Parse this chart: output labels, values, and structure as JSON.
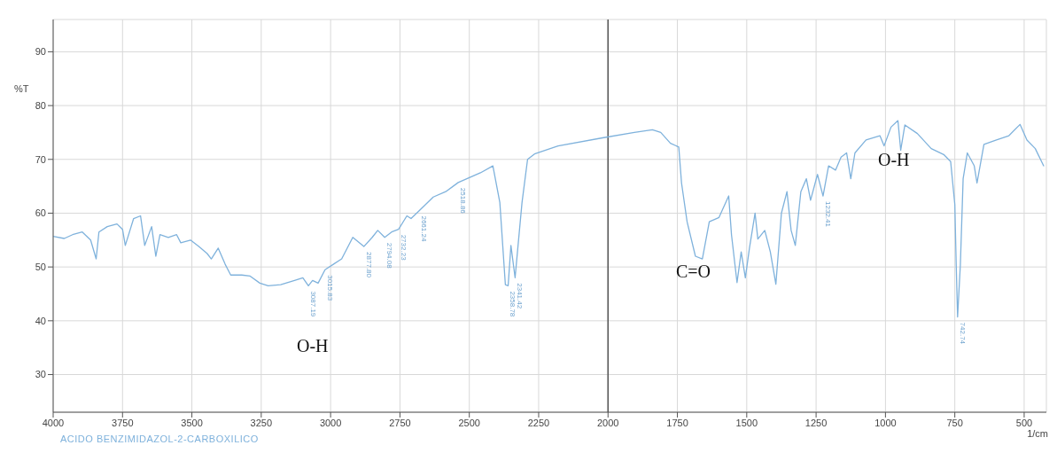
{
  "chart_data": {
    "type": "line",
    "xlabel": "1/cm",
    "ylabel": "%T",
    "xlim": [
      4000,
      420
    ],
    "xticks": [
      4000,
      3750,
      3500,
      3250,
      3000,
      2750,
      2500,
      2250,
      2000,
      1750,
      1500,
      1250,
      1000,
      750,
      500
    ],
    "ylim": [
      23,
      96
    ],
    "yticks": [
      30,
      40,
      50,
      60,
      70,
      80,
      90
    ],
    "grid": true,
    "legend": false,
    "marker": "none",
    "line_style": "solid",
    "ref_lines": [
      {
        "axis": "x",
        "value": 2000,
        "color": "#555555"
      }
    ],
    "series": [
      {
        "color": "#7fb2dc",
        "x": [
          4000,
          3960,
          3930,
          3895,
          3865,
          3845,
          3835,
          3805,
          3770,
          3750,
          3740,
          3710,
          3685,
          3670,
          3645,
          3630,
          3615,
          3585,
          3555,
          3540,
          3505,
          3475,
          3445,
          3430,
          3405,
          3380,
          3360,
          3320,
          3290,
          3255,
          3225,
          3180,
          3130,
          3100,
          3080,
          3065,
          3045,
          3020,
          2990,
          2960,
          2920,
          2880,
          2850,
          2830,
          2805,
          2780,
          2755,
          2725,
          2710,
          2680,
          2630,
          2585,
          2540,
          2460,
          2415,
          2390,
          2370,
          2360,
          2350,
          2335,
          2310,
          2290,
          2265,
          2180,
          2020,
          1905,
          1840,
          1810,
          1775,
          1745,
          1735,
          1715,
          1685,
          1660,
          1635,
          1600,
          1565,
          1555,
          1535,
          1520,
          1505,
          1490,
          1470,
          1460,
          1435,
          1415,
          1395,
          1375,
          1355,
          1340,
          1325,
          1305,
          1285,
          1270,
          1245,
          1225,
          1205,
          1180,
          1160,
          1140,
          1125,
          1110,
          1070,
          1020,
          1005,
          980,
          955,
          945,
          930,
          885,
          835,
          790,
          765,
          750,
          745,
          740,
          730,
          720,
          705,
          680,
          670,
          645,
          600,
          555,
          515,
          490,
          460,
          430
        ],
        "values": [
          55.7,
          55.3,
          56,
          56.5,
          55,
          51.5,
          56.5,
          57.5,
          58,
          57,
          54,
          59,
          59.5,
          54,
          57.5,
          52,
          56,
          55.5,
          56,
          54.5,
          55,
          53.8,
          52.5,
          51.5,
          53.5,
          50.5,
          48.5,
          48.5,
          48.3,
          47,
          46.5,
          46.7,
          47.5,
          48,
          46.5,
          47.5,
          47,
          49.5,
          50.5,
          51.5,
          55.5,
          53.8,
          55.5,
          56.8,
          55.5,
          56.5,
          57,
          59.5,
          59,
          60.5,
          63,
          64,
          65.7,
          67.5,
          68.8,
          62,
          46.7,
          46.5,
          54,
          48,
          62,
          70,
          71,
          72.5,
          74,
          75,
          75.5,
          75,
          73,
          72.3,
          65.6,
          58.4,
          52,
          51.5,
          58.4,
          59.2,
          63.2,
          56,
          47.1,
          52.8,
          48,
          53.6,
          60,
          55.2,
          56.8,
          52.8,
          46.8,
          60,
          64,
          56.8,
          54,
          64,
          66.4,
          62.4,
          67.2,
          63.2,
          68.8,
          68,
          70.4,
          71.2,
          66.4,
          71.2,
          73.6,
          74.4,
          72.5,
          76,
          77.2,
          71.7,
          76.4,
          74.8,
          72,
          70.9,
          69.6,
          61.6,
          50.4,
          40.7,
          50.4,
          66.4,
          71.2,
          68.8,
          65.6,
          72.8,
          73.6,
          74.4,
          76.5,
          73.6,
          72,
          68.8
        ]
      }
    ],
    "annotations": [
      "O-H",
      "C=O",
      "O-H",
      "ACIDO BENZIMIDAZOL-2-CARBOXILICO",
      {
        "text": "3087.19",
        "x": 3080,
        "y": 46.5
      },
      {
        "text": "3015.83",
        "x": 3020,
        "y": 49.5
      },
      {
        "text": "2877.80",
        "x": 2880,
        "y": 53.8
      },
      {
        "text": "2794.08",
        "x": 2805,
        "y": 55.5
      },
      {
        "text": "2732.23",
        "x": 2755,
        "y": 57
      },
      {
        "text": "2661.24",
        "x": 2680,
        "y": 60.5
      },
      {
        "text": "2518.86",
        "x": 2540,
        "y": 65.7
      },
      {
        "text": "2358.78",
        "x": 2360,
        "y": 46.5
      },
      {
        "text": "2341.42",
        "x": 2335,
        "y": 48
      },
      {
        "text": "1232.41",
        "x": 1225,
        "y": 63.2
      },
      {
        "text": "742.74",
        "x": 740,
        "y": 40.7
      }
    ]
  }
}
